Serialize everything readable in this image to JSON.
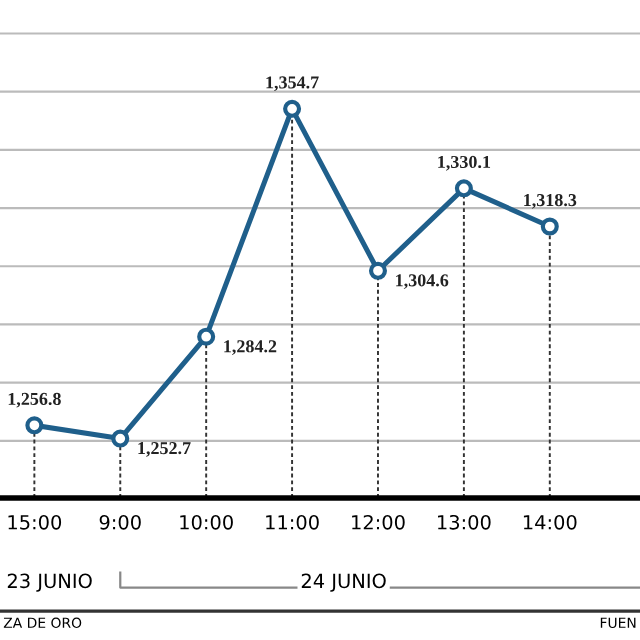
{
  "chart_data": {
    "type": "line",
    "categories": [
      "15:00",
      "9:00",
      "10:00",
      "11:00",
      "12:00",
      "13:00",
      "14:00",
      null
    ],
    "series": [
      {
        "color": "#1f5f8b",
        "values": [
          1256.8,
          1252.7,
          1284.2,
          1354.7,
          1304.6,
          1330.1,
          1318.3,
          null
        ],
        "value_labels": [
          "1,256.8",
          "1,252.7",
          "1,284.2",
          "1,354.7",
          "1,304.6",
          "1,330.1",
          "1,318.3",
          null
        ]
      }
    ],
    "yticks": [
      {
        "value": 1252,
        "label": null
      },
      {
        "value": 1270,
        "label": null
      },
      {
        "value": 1288,
        "label": null
      },
      {
        "value": 1306,
        "label": null
      },
      {
        "value": 1324,
        "label": null
      },
      {
        "value": 1342,
        "label": null
      },
      {
        "value": 1360,
        "label": null
      },
      {
        "value": 1378,
        "label": null
      }
    ],
    "grid": true,
    "marker": "circle",
    "line_style": "solid",
    "legend": false,
    "tick_labels": "x",
    "annotations": [
      "23 JUNIO",
      "24 JUNIO",
      "ZA DE ORO",
      "FUEN"
    ]
  }
}
